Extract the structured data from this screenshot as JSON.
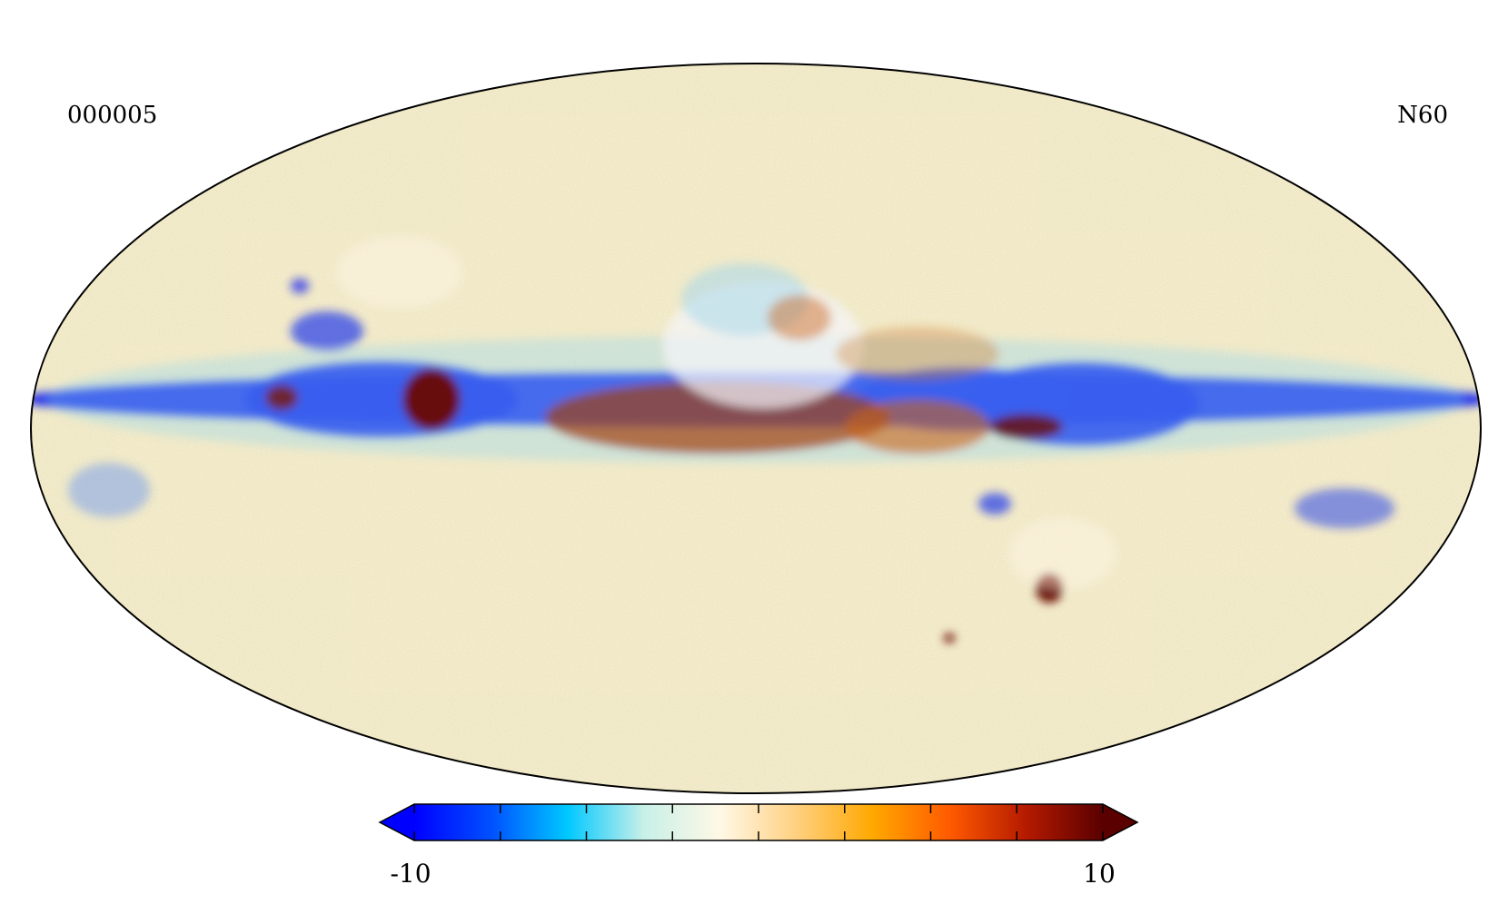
{
  "map": {
    "projection": "mollweide",
    "label_left": "000005",
    "label_right": "N60",
    "background_color": "#f3e8c4",
    "band_color": "#0a1ef0"
  },
  "colorbar": {
    "min_label": "-10",
    "max_label": "10",
    "min": -10,
    "max": 10,
    "extend": "both",
    "colors": [
      "#0000ff",
      "#0050ff",
      "#00c8ff",
      "#c8f0e8",
      "#fff8e6",
      "#ffd080",
      "#ffa800",
      "#ff5a00",
      "#b41a00",
      "#5a0000"
    ],
    "ticks": [
      -10,
      -7.5,
      -5,
      -2.5,
      0,
      2.5,
      5,
      7.5,
      10
    ]
  }
}
